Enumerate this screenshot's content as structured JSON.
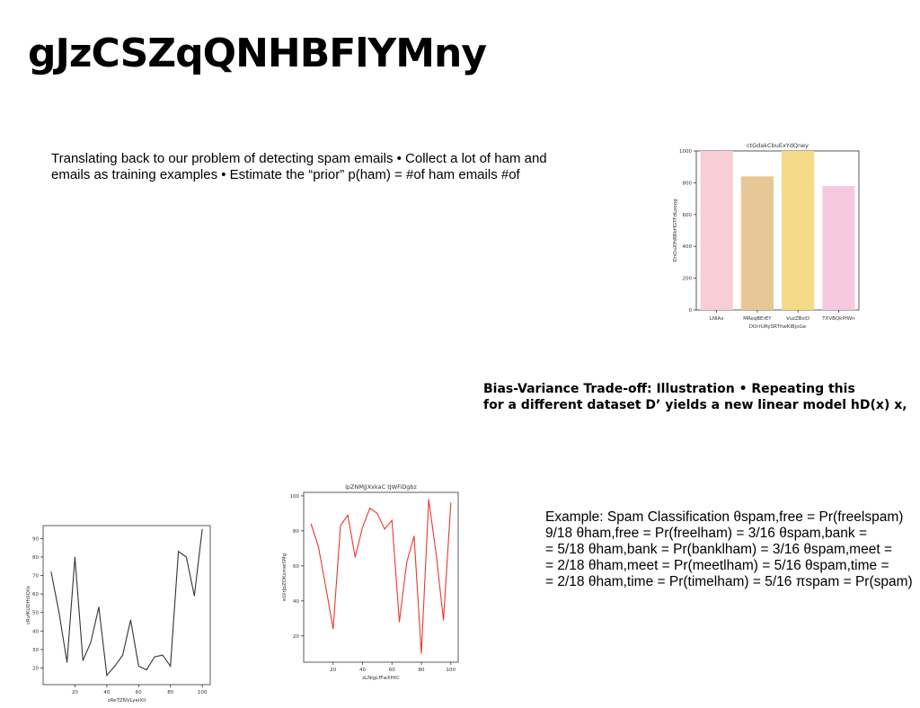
{
  "page": {
    "title": "gJzCSZqQNHBFlYMny",
    "paragraph1": "Translating back to our problem of detecting spam emails • Collect a lot of ham and\nemails as training examples • Estimate the “prior” p(ham) = #of ham emails #of",
    "paragraph2": "Bias-Variance Trade-off: Illustration • Repeating this\nfor a different dataset D’ yields a new linear model hD(x) x,",
    "paragraph3": "Example: Spam Classification θspam,free = Pr(freelspam)\n9/18 θham,free = Pr(freelham) = 3/16 θspam,bank =\n= 5/18 θham,bank = Pr(banklham) = 3/16 θspam,meet =\n= 2/18 θham,meet = Pr(meetlham) = 5/16 θspam,time =\n= 2/18 θham,time = Pr(timelham) = 5/16 πspam = Pr(spam)"
  },
  "chart_data": [
    {
      "type": "bar",
      "title": "ctGdakCbuExYdQney",
      "xlabel": "DOrrURySRThwKlBjoGe",
      "ylabel": "DnOuXfhRBkHGTFdLooog",
      "categories": [
        "LNlAx",
        "MReqBErEY",
        "VuzZBslO",
        "TXVBQkPfWn"
      ],
      "values": [
        1000,
        840,
        1000,
        780
      ],
      "colors": [
        "#f9cdd5",
        "#e8c796",
        "#f4d987",
        "#f6c9e0"
      ],
      "ylim": [
        0,
        1000
      ],
      "yticks": [
        0,
        200,
        400,
        600,
        800,
        1000
      ]
    },
    {
      "type": "line",
      "title": "",
      "xlabel": "zReTZNVLyeiXil",
      "ylabel": "cRvfKUDfhSQllx",
      "color": "#333333",
      "x": [
        5,
        10,
        15,
        20,
        25,
        30,
        35,
        40,
        45,
        50,
        55,
        60,
        65,
        70,
        75,
        80,
        85,
        90,
        95,
        100
      ],
      "y": [
        72,
        50,
        23,
        80,
        24,
        34,
        53,
        16,
        21,
        27,
        46,
        21,
        19,
        26,
        27,
        21,
        83,
        80,
        59,
        95
      ],
      "xlim": [
        0,
        105
      ],
      "ylim": [
        11,
        97
      ],
      "xticks": [
        20,
        40,
        60,
        80,
        100
      ],
      "yticks": [
        20,
        30,
        40,
        50,
        60,
        70,
        80,
        90
      ]
    },
    {
      "type": "line",
      "title": "lpZNMjJXxkaC tJWFiDgbz",
      "xlabel": "zLNigLfFwXHtC",
      "ylabel": "eLVrJpZOKsmwSMg",
      "color": "#e8382f",
      "x": [
        5,
        10,
        15,
        20,
        25,
        30,
        35,
        40,
        45,
        50,
        55,
        60,
        65,
        70,
        75,
        80,
        85,
        90,
        95,
        100
      ],
      "y": [
        84,
        71,
        48,
        24,
        83,
        89,
        65,
        82,
        93,
        90,
        81,
        86,
        28,
        62,
        77,
        10,
        98,
        67,
        29,
        96
      ],
      "xlim": [
        0,
        105
      ],
      "ylim": [
        5,
        102
      ],
      "xticks": [
        20,
        40,
        60,
        80,
        100
      ],
      "yticks": [
        20,
        40,
        60,
        80,
        100
      ]
    }
  ]
}
